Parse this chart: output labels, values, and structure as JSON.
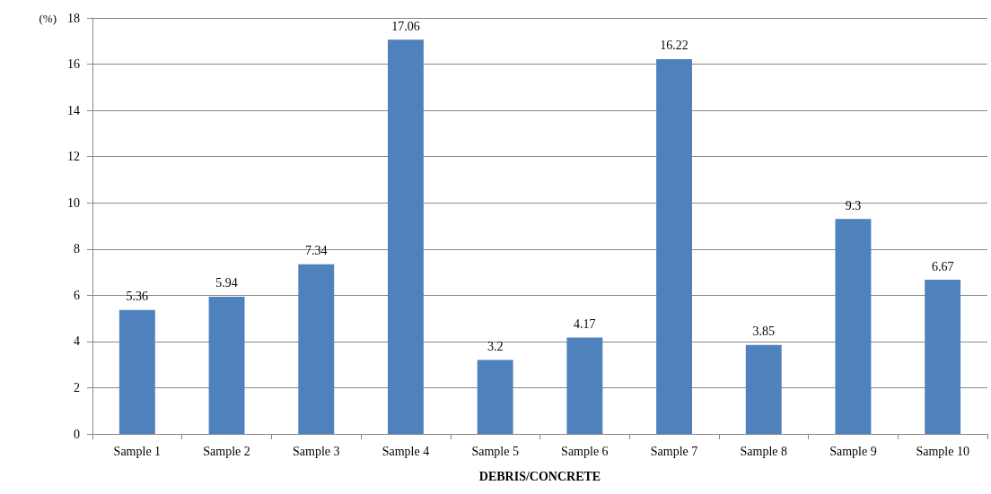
{
  "chart_data": {
    "type": "bar",
    "ylabel": "(%)",
    "xlabel": "DEBRIS/CONCRETE",
    "categories": [
      "Sample 1",
      "Sample 2",
      "Sample 3",
      "Sample 4",
      "Sample 5",
      "Sample 6",
      "Sample 7",
      "Sample 8",
      "Sample 9",
      "Sample 10"
    ],
    "values": [
      5.36,
      5.94,
      7.34,
      17.06,
      3.2,
      4.17,
      16.22,
      3.85,
      9.3,
      6.67
    ],
    "color": "#4f81bd",
    "ylim": [
      0,
      18
    ],
    "yticks": [
      0,
      2,
      4,
      6,
      8,
      10,
      12,
      14,
      16,
      18
    ],
    "grid": "y",
    "data_labels": true
  }
}
